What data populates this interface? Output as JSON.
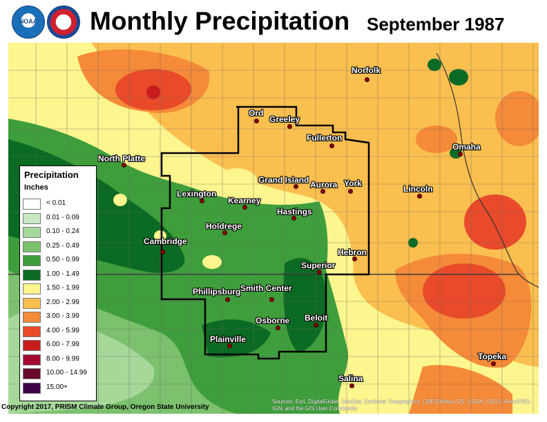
{
  "header": {
    "title": "Monthly Precipitation",
    "date": "September 1987",
    "noaa_logo_text": "NOAA",
    "nws_logo_text": "NWS"
  },
  "legend": {
    "title": "Precipitation",
    "units": "Inches",
    "classes": [
      {
        "label": "< 0.01",
        "color": "#ffffff"
      },
      {
        "label": "0.01 - 0.09",
        "color": "#c9e8c2"
      },
      {
        "label": "0.10 - 0.24",
        "color": "#a6d89a"
      },
      {
        "label": "0.25 - 0.49",
        "color": "#7cc16e"
      },
      {
        "label": "0.50 - 0.99",
        "color": "#3f9e3c"
      },
      {
        "label": "1.00 - 1.49",
        "color": "#0b6a23"
      },
      {
        "label": "1.50 - 1.99",
        "color": "#fdf58e"
      },
      {
        "label": "2.00 - 2.99",
        "color": "#fbbf4f"
      },
      {
        "label": "3.00 - 3.99",
        "color": "#f58a38"
      },
      {
        "label": "4.00 - 5.99",
        "color": "#e84a2a"
      },
      {
        "label": "6.00 - 7.99",
        "color": "#c91d1d"
      },
      {
        "label": "8.00 - 9.99",
        "color": "#a3082f"
      },
      {
        "label": "10.00 - 14.99",
        "color": "#6a0a2d"
      },
      {
        "label": "15.00+",
        "color": "#3b0045"
      }
    ]
  },
  "cities": [
    {
      "name": "Norfolk"
    },
    {
      "name": "Ord"
    },
    {
      "name": "Greeley"
    },
    {
      "name": "Fullerton"
    },
    {
      "name": "Omaha"
    },
    {
      "name": "North Platte"
    },
    {
      "name": "Grand Island"
    },
    {
      "name": "Aurora"
    },
    {
      "name": "York"
    },
    {
      "name": "Lincoln"
    },
    {
      "name": "Lexington"
    },
    {
      "name": "Kearney"
    },
    {
      "name": "Hastings"
    },
    {
      "name": "Holdrege"
    },
    {
      "name": "Cambridge"
    },
    {
      "name": "Hebron"
    },
    {
      "name": "Superior"
    },
    {
      "name": "Phillipsburg"
    },
    {
      "name": "Smith Center"
    },
    {
      "name": "Osborne"
    },
    {
      "name": "Beloit"
    },
    {
      "name": "Plainville"
    },
    {
      "name": "Topeka"
    },
    {
      "name": "Salina"
    }
  ],
  "footer": {
    "copyright": "Copyright 2017, PRISM Climate Group, Oregon State University",
    "source": "Sources: Esri, DigitalGlobe, GeoEye, Earthstar Geographics, CNES/Airbus DS, USDA, USGS, AeroGRID, IGN, and the GIS User Community"
  }
}
